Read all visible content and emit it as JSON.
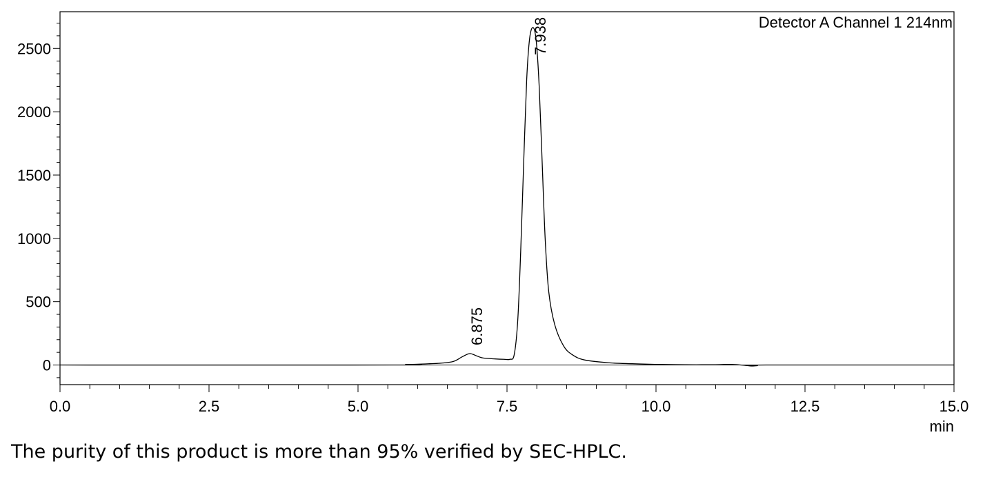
{
  "chart_data": {
    "type": "line",
    "title": "Detector A Channel 1 214nm",
    "xlabel": "min",
    "ylabel": "",
    "xlim": [
      0.0,
      15.0
    ],
    "ylim": [
      -155,
      2790
    ],
    "x_ticks": [
      "0.0",
      "2.5",
      "5.0",
      "7.5",
      "10.0",
      "12.5",
      "15.0"
    ],
    "y_ticks": [
      "0",
      "500",
      "1000",
      "1500",
      "2000",
      "2500"
    ],
    "grid": false,
    "series": [
      {
        "name": "",
        "color": "#000000",
        "points": [
          [
            0.0,
            0
          ],
          [
            5.6,
            0
          ],
          [
            5.8,
            4
          ],
          [
            6.0,
            6
          ],
          [
            6.2,
            10
          ],
          [
            6.4,
            15
          ],
          [
            6.6,
            28
          ],
          [
            6.75,
            65
          ],
          [
            6.875,
            90
          ],
          [
            7.0,
            70
          ],
          [
            7.1,
            55
          ],
          [
            7.3,
            48
          ],
          [
            7.45,
            45
          ],
          [
            7.55,
            45
          ],
          [
            7.62,
            80
          ],
          [
            7.68,
            350
          ],
          [
            7.73,
            900
          ],
          [
            7.78,
            1600
          ],
          [
            7.83,
            2250
          ],
          [
            7.88,
            2580
          ],
          [
            7.938,
            2665
          ],
          [
            7.99,
            2560
          ],
          [
            8.04,
            2200
          ],
          [
            8.09,
            1600
          ],
          [
            8.14,
            1000
          ],
          [
            8.2,
            580
          ],
          [
            8.3,
            320
          ],
          [
            8.45,
            150
          ],
          [
            8.6,
            80
          ],
          [
            8.8,
            40
          ],
          [
            9.2,
            18
          ],
          [
            9.6,
            10
          ],
          [
            10.0,
            5
          ],
          [
            10.5,
            2
          ],
          [
            11.0,
            2
          ],
          [
            11.2,
            5
          ],
          [
            11.35,
            3
          ],
          [
            11.5,
            -3
          ],
          [
            11.6,
            -8
          ],
          [
            11.7,
            -5
          ],
          [
            11.85,
            0
          ],
          [
            15.0,
            0
          ]
        ]
      }
    ],
    "peaks": [
      {
        "label": "6.875",
        "x": 6.875,
        "y": 90
      },
      {
        "label": "7.938",
        "x": 7.938,
        "y": 2665
      }
    ]
  },
  "caption": "The purity of this product is more than 95% verified by SEC-HPLC."
}
